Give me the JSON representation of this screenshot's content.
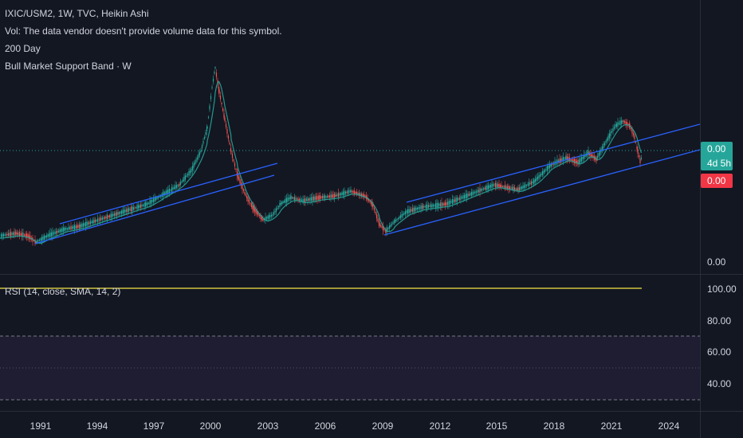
{
  "legend": {
    "symbol_line": "IXIC/USM2, 1W, TVC, Heikin Ashi",
    "volume_line": "Vol: The data vendor doesn't provide volume data for this symbol.",
    "ma_line": "200 Day",
    "band_line": "Bull Market Support Band · W"
  },
  "price_axis": {
    "upper_label": "0.00",
    "lower_label": "0.00",
    "last_price_tag": "0.00",
    "countdown_tag": "4d 5h",
    "band_tag": "0.00"
  },
  "rsi": {
    "legend": "RSI (14, close, SMA, 14, 2)",
    "axis_labels": [
      "100.00",
      "80.00",
      "60.00",
      "40.00"
    ]
  },
  "time_axis": {
    "labels": [
      "1991",
      "1994",
      "1997",
      "2000",
      "2003",
      "2006",
      "2009",
      "2012",
      "2015",
      "2018",
      "2021",
      "2024"
    ]
  },
  "colors": {
    "background": "#131722",
    "candle_up": "#26a69a",
    "candle_down": "#ef5350",
    "channel_line": "#2962ff",
    "rsi_line": "#f5e642",
    "rsi_band": "#7e57c2",
    "last_price_tag": "#26a69a",
    "band_tag": "#f23645"
  }
}
